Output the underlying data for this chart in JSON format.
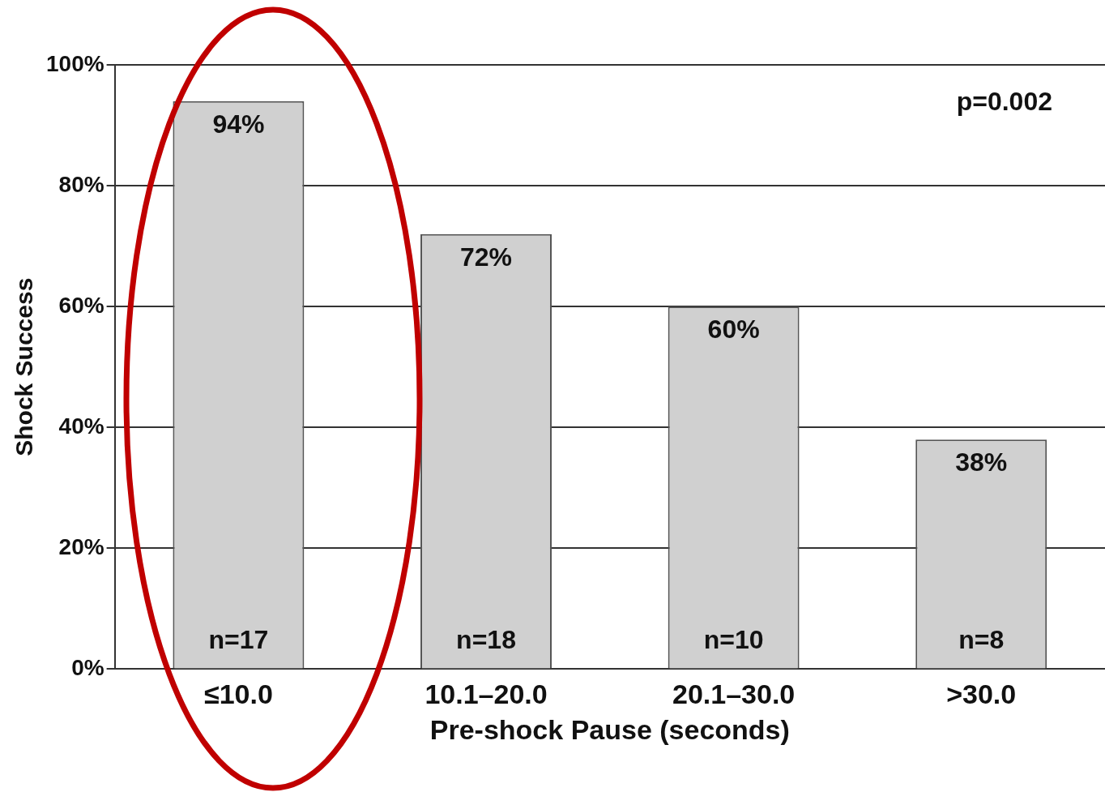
{
  "chart_data": {
    "type": "bar",
    "xlabel": "Pre-shock Pause (seconds)",
    "ylabel": "Shock Success",
    "categories": [
      "≤10.0",
      "10.1–20.0",
      "20.1–30.0",
      ">30.0"
    ],
    "values": [
      94,
      72,
      60,
      38
    ],
    "color": "#d0d0d0",
    "value_labels": [
      "94%",
      "72%",
      "60%",
      "38%"
    ],
    "ylim": [
      0,
      100
    ],
    "yticks": [
      {
        "value": 0,
        "label": "0%"
      },
      {
        "value": 20,
        "label": "20%"
      },
      {
        "value": 40,
        "label": "40%"
      },
      {
        "value": 60,
        "label": "60%"
      },
      {
        "value": 80,
        "label": "80%"
      },
      {
        "value": 100,
        "label": "100%"
      }
    ],
    "grid": "y",
    "legend": false,
    "annotations": [
      "p=0.002",
      {
        "text": "n=17",
        "x": "≤10.0",
        "y": 0
      },
      {
        "text": "n=18",
        "x": "10.1–20.0",
        "y": 0
      },
      {
        "text": "n=10",
        "x": "20.1–30.0",
        "y": 0
      },
      {
        "text": "n=8",
        "x": ">30.0",
        "y": 0
      }
    ]
  }
}
